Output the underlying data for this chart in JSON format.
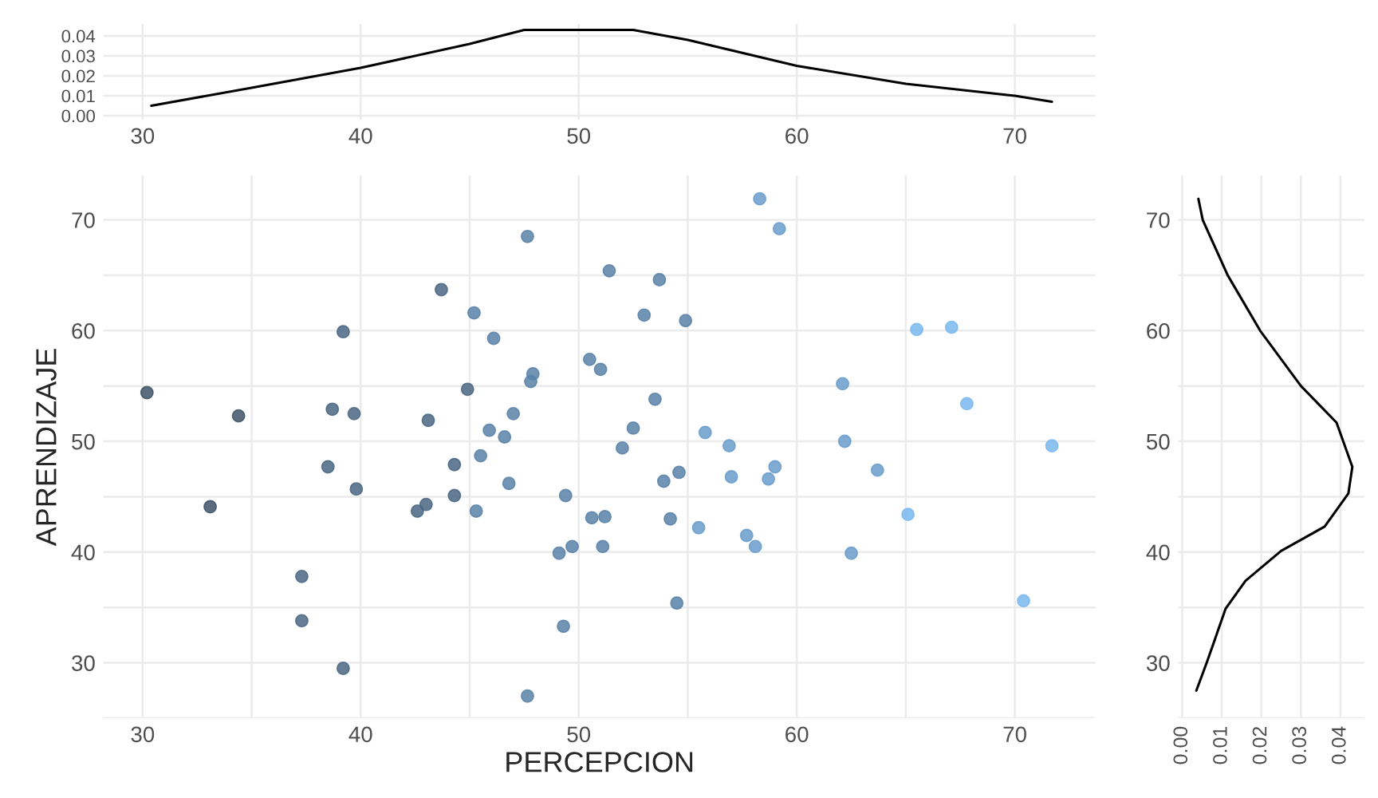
{
  "chart_data": [
    {
      "type": "line",
      "x": [
        30.4,
        35,
        40,
        45,
        47.5,
        52.5,
        55,
        60,
        65,
        70,
        71.7
      ],
      "series": [
        {
          "color": "#000000",
          "values": [
            0.005,
            0.014,
            0.024,
            0.036,
            0.043,
            0.043,
            0.038,
            0.025,
            0.016,
            0.01,
            0.007
          ]
        }
      ],
      "xlim": [
        28.2,
        73.7
      ],
      "xticks": [
        30,
        40,
        50,
        60,
        70
      ],
      "ylim": [
        -0.002,
        0.046
      ],
      "yticks": [
        {
          "value": 0,
          "label": "0.00"
        },
        {
          "value": 0.01,
          "label": "0.01"
        },
        {
          "value": 0.02,
          "label": "0.02"
        },
        {
          "value": 0.03,
          "label": "0.03"
        },
        {
          "value": 0.04,
          "label": "0.04"
        }
      ],
      "grid": true,
      "marker": "none"
    },
    {
      "type": "scatter",
      "xlabel": "PERCEPCION",
      "ylabel": "APRENDIZAJE",
      "x": [
        47.65,
        51.4,
        43.7,
        45.2,
        39.2,
        46.1,
        50.5,
        51.0,
        47.9,
        47.8,
        30.2,
        44.9,
        34.4,
        38.7,
        39.7,
        43.1,
        47.0,
        45.9,
        46.6,
        52.0,
        45.5,
        38.5,
        44.3,
        46.8,
        39.8,
        49.4,
        33.1,
        43.0,
        42.6,
        44.3,
        45.3,
        50.6,
        51.2,
        49.1,
        49.7,
        51.1,
        37.3,
        37.3,
        49.3,
        39.2,
        47.65,
        58.3,
        59.2,
        53.7,
        53.0,
        54.9,
        65.5,
        67.1,
        62.1,
        53.5,
        67.8,
        52.5,
        55.8,
        56.9,
        62.2,
        71.7,
        54.6,
        53.9,
        59.0,
        58.7,
        57.0,
        63.7,
        54.2,
        55.5,
        57.7,
        58.1,
        65.1,
        62.5,
        54.5,
        70.4
      ],
      "values": [
        68.5,
        65.4,
        63.7,
        61.6,
        59.9,
        59.3,
        57.4,
        56.5,
        56.1,
        55.4,
        54.4,
        54.7,
        52.3,
        52.9,
        52.5,
        51.9,
        52.5,
        51.0,
        50.4,
        49.4,
        48.7,
        47.7,
        47.9,
        46.2,
        45.7,
        45.1,
        44.1,
        44.3,
        43.7,
        45.1,
        43.7,
        43.1,
        43.2,
        39.9,
        40.5,
        40.5,
        37.8,
        33.8,
        33.3,
        29.5,
        27.0,
        71.9,
        69.2,
        64.6,
        61.4,
        60.9,
        60.1,
        60.3,
        55.2,
        53.8,
        53.4,
        51.2,
        50.8,
        49.6,
        50.0,
        49.6,
        47.2,
        46.4,
        47.7,
        46.6,
        46.8,
        47.4,
        43.0,
        42.2,
        41.5,
        40.5,
        43.4,
        39.9,
        35.4,
        35.6
      ],
      "colors": [
        "#5a82a8",
        "#5a82a8",
        "#4a6784",
        "#5a82a8",
        "#4a6784",
        "#5a82a8",
        "#5a82a8",
        "#5a82a8",
        "#5a82a8",
        "#5a82a8",
        "#3f5468",
        "#4a6784",
        "#3f5468",
        "#4a6784",
        "#4a6784",
        "#4a6784",
        "#5a82a8",
        "#5a82a8",
        "#5a82a8",
        "#5a82a8",
        "#5a82a8",
        "#4a6784",
        "#4a6784",
        "#5a82a8",
        "#4a6784",
        "#5a82a8",
        "#3f5468",
        "#4a6784",
        "#4a6784",
        "#4a6784",
        "#5a82a8",
        "#5a82a8",
        "#5a82a8",
        "#5a82a8",
        "#5a82a8",
        "#5a82a8",
        "#4a6784",
        "#4a6784",
        "#5a82a8",
        "#4a6784",
        "#5a82a8",
        "#6a9ccb",
        "#6a9ccb",
        "#5a82a8",
        "#5a82a8",
        "#5a82a8",
        "#7ab8ee",
        "#7ab8ee",
        "#6a9ccb",
        "#5a82a8",
        "#7ab8ee",
        "#5a82a8",
        "#6a9ccb",
        "#6a9ccb",
        "#6a9ccb",
        "#7ab8ee",
        "#5a82a8",
        "#5a82a8",
        "#6a9ccb",
        "#6a9ccb",
        "#6a9ccb",
        "#6a9ccb",
        "#5a82a8",
        "#6a9ccb",
        "#6a9ccb",
        "#6a9ccb",
        "#7ab8ee",
        "#6a9ccb",
        "#5a82a8",
        "#7ab8ee"
      ],
      "xlim": [
        28.2,
        73.7
      ],
      "xticks": [
        30,
        {
          "value": 35,
          "label": null
        },
        40,
        {
          "value": 45,
          "label": null
        },
        50,
        {
          "value": 55,
          "label": null
        },
        60,
        {
          "value": 65,
          "label": null
        },
        70
      ],
      "ylim": [
        25,
        74
      ],
      "yticks": [
        {
          "value": 25,
          "label": null
        },
        30,
        {
          "value": 35,
          "label": null
        },
        40,
        {
          "value": 45,
          "label": null
        },
        50,
        {
          "value": 55,
          "label": null
        },
        60,
        {
          "value": 65,
          "label": null
        },
        70
      ],
      "grid": true,
      "marker": "circle"
    },
    {
      "type": "line",
      "series": [
        {
          "color": "#000000",
          "x": [
            0.0041,
            0.0052,
            0.0115,
            0.0197,
            0.03,
            0.039,
            0.043,
            0.042,
            0.036,
            0.025,
            0.016,
            0.011,
            0.0062,
            0.0036
          ],
          "values": [
            71.9,
            70,
            65,
            60,
            55,
            51.7,
            47.7,
            45.3,
            42.3,
            40.1,
            37.4,
            34.9,
            30,
            27.5
          ]
        }
      ],
      "xlim": [
        -0.001,
        0.046
      ],
      "xticks": [
        {
          "value": 0,
          "label": "0.00"
        },
        {
          "value": 0.01,
          "label": "0.01"
        },
        {
          "value": 0.02,
          "label": "0.02"
        },
        {
          "value": 0.03,
          "label": "0.03"
        },
        {
          "value": 0.04,
          "label": "0.04"
        }
      ],
      "ylim": [
        25,
        74
      ],
      "yticks": [
        {
          "value": 25,
          "label": null
        },
        30,
        {
          "value": 35,
          "label": null
        },
        40,
        {
          "value": 45,
          "label": null
        },
        50,
        {
          "value": 55,
          "label": null
        },
        60,
        {
          "value": 65,
          "label": null
        },
        70
      ],
      "grid": true,
      "marker": "none"
    }
  ]
}
